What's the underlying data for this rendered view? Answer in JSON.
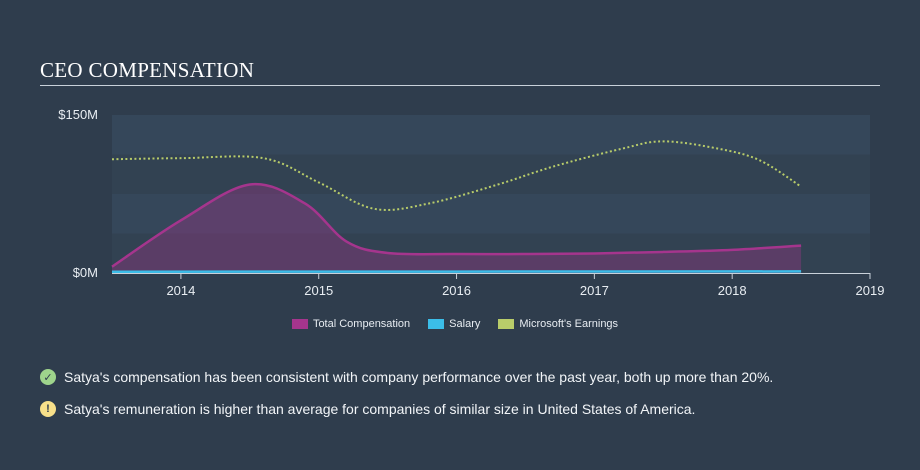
{
  "header": {
    "title": "CEO COMPENSATION"
  },
  "chart_data": {
    "type": "line",
    "title": "CEO COMPENSATION",
    "x_range": [
      2013.5,
      2019
    ],
    "y_range": [
      0,
      150
    ],
    "y_unit": "$M",
    "y_ticks": [
      {
        "value": 150,
        "label": "$150M"
      },
      {
        "value": 0,
        "label": "$0M"
      }
    ],
    "x_ticks": [
      2014,
      2015,
      2016,
      2017,
      2018,
      2019
    ],
    "series": [
      {
        "name": "Total Compensation",
        "color": "#a5358d",
        "style": "area",
        "points": [
          [
            2013.5,
            6
          ],
          [
            2014.0,
            50
          ],
          [
            2014.5,
            84
          ],
          [
            2014.9,
            66
          ],
          [
            2015.2,
            30
          ],
          [
            2015.5,
            19
          ],
          [
            2016.0,
            18
          ],
          [
            2016.5,
            18
          ],
          [
            2017.0,
            18.5
          ],
          [
            2017.5,
            20
          ],
          [
            2018.0,
            22
          ],
          [
            2018.5,
            26
          ]
        ]
      },
      {
        "name": "Salary",
        "color": "#3bbde8",
        "style": "line",
        "points": [
          [
            2013.5,
            1.2
          ],
          [
            2018.5,
            1.5
          ]
        ]
      },
      {
        "name": "Microsoft's Earnings",
        "color": "#b8cc6a",
        "style": "dotted",
        "points": [
          [
            2013.5,
            108
          ],
          [
            2014.0,
            109
          ],
          [
            2014.6,
            109
          ],
          [
            2015.0,
            86
          ],
          [
            2015.4,
            61
          ],
          [
            2015.8,
            66
          ],
          [
            2016.3,
            84
          ],
          [
            2016.7,
            101
          ],
          [
            2017.2,
            118
          ],
          [
            2017.5,
            125
          ],
          [
            2017.9,
            118
          ],
          [
            2018.2,
            107
          ],
          [
            2018.5,
            82
          ]
        ]
      }
    ],
    "legend": [
      "Total Compensation",
      "Salary",
      "Microsoft's Earnings"
    ]
  },
  "notes": [
    {
      "icon": "check-icon",
      "text": "Satya's compensation has been consistent with company performance over the past year, both up more than 20%."
    },
    {
      "icon": "warning-icon",
      "text": "Satya's remuneration is higher than average for companies of similar size in United States of America."
    }
  ]
}
